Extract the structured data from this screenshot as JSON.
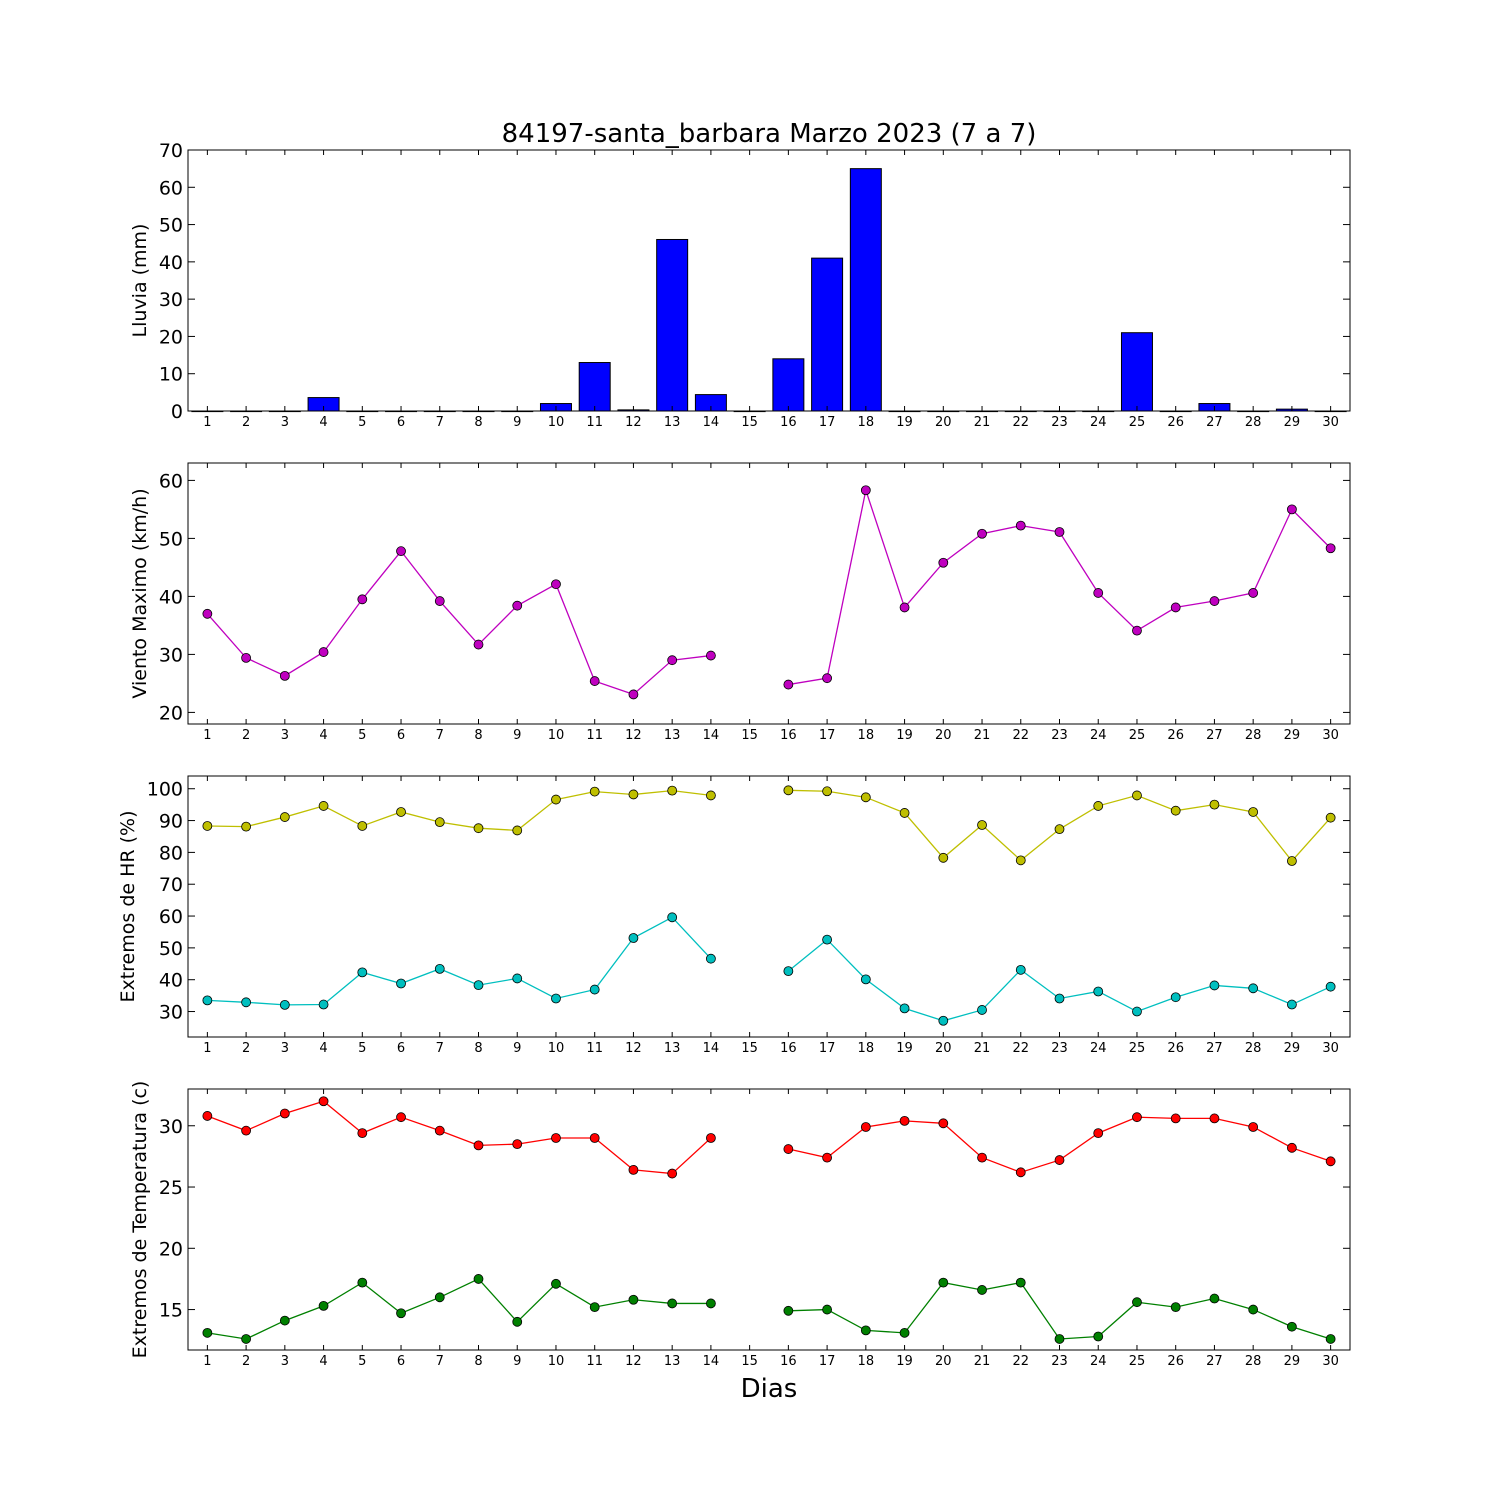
{
  "title": "84197-santa_barbara Marzo 2023  (7 a 7)",
  "xlabel": "Dias",
  "chart_data": [
    {
      "type": "bar",
      "ylabel": "Lluvia (mm)",
      "ylim": [
        0,
        70
      ],
      "yticks": [
        0,
        10,
        20,
        30,
        40,
        50,
        60,
        70
      ],
      "xlim": [
        0.5,
        30.5
      ],
      "xticks": [
        1,
        2,
        3,
        4,
        5,
        6,
        7,
        8,
        9,
        10,
        11,
        12,
        13,
        14,
        15,
        16,
        17,
        18,
        19,
        20,
        21,
        22,
        23,
        24,
        25,
        26,
        27,
        28,
        29,
        30
      ],
      "x": [
        1,
        2,
        3,
        4,
        5,
        6,
        7,
        8,
        9,
        10,
        11,
        12,
        13,
        14,
        15,
        16,
        17,
        18,
        19,
        20,
        21,
        22,
        23,
        24,
        25,
        26,
        27,
        28,
        29,
        30
      ],
      "series": [
        {
          "color": "#0000ff",
          "values": [
            0,
            0,
            0,
            3.6,
            0,
            0,
            0,
            0,
            0,
            2,
            13,
            0.3,
            46,
            4.4,
            0,
            14,
            41,
            65,
            0,
            0,
            0,
            0,
            0,
            0,
            21,
            0,
            2,
            0,
            0.5,
            0
          ]
        }
      ]
    },
    {
      "type": "line",
      "ylabel": "Viento Maximo (km/h)",
      "ylim": [
        18,
        63
      ],
      "yticks": [
        20,
        30,
        40,
        50,
        60
      ],
      "xlim": [
        0.5,
        30.5
      ],
      "xticks": [
        1,
        2,
        3,
        4,
        5,
        6,
        7,
        8,
        9,
        10,
        11,
        12,
        13,
        14,
        15,
        16,
        17,
        18,
        19,
        20,
        21,
        22,
        23,
        24,
        25,
        26,
        27,
        28,
        29,
        30
      ],
      "x": [
        1,
        2,
        3,
        4,
        5,
        6,
        7,
        8,
        9,
        10,
        11,
        12,
        13,
        14,
        15,
        16,
        17,
        18,
        19,
        20,
        21,
        22,
        23,
        24,
        25,
        26,
        27,
        28,
        29,
        30
      ],
      "series": [
        {
          "color": "#bf00bf",
          "values": [
            37,
            29.4,
            26.3,
            30.4,
            39.5,
            47.8,
            39.2,
            31.7,
            38.4,
            42.1,
            25.4,
            23.1,
            29,
            29.8,
            null,
            24.8,
            25.9,
            58.3,
            38.1,
            45.8,
            50.8,
            52.2,
            51.1,
            40.6,
            34.1,
            38.1,
            39.2,
            40.6,
            55,
            48.3
          ]
        }
      ]
    },
    {
      "type": "line",
      "ylabel": "Extremos de HR (%)",
      "ylim": [
        22,
        104
      ],
      "yticks": [
        30,
        40,
        50,
        60,
        70,
        80,
        90,
        100
      ],
      "xlim": [
        0.5,
        30.5
      ],
      "xticks": [
        1,
        2,
        3,
        4,
        5,
        6,
        7,
        8,
        9,
        10,
        11,
        12,
        13,
        14,
        15,
        16,
        17,
        18,
        19,
        20,
        21,
        22,
        23,
        24,
        25,
        26,
        27,
        28,
        29,
        30
      ],
      "x": [
        1,
        2,
        3,
        4,
        5,
        6,
        7,
        8,
        9,
        10,
        11,
        12,
        13,
        14,
        15,
        16,
        17,
        18,
        19,
        20,
        21,
        22,
        23,
        24,
        25,
        26,
        27,
        28,
        29,
        30
      ],
      "series": [
        {
          "color": "#bfbf00",
          "values": [
            88.3,
            88.1,
            91.1,
            94.6,
            88.3,
            92.7,
            89.5,
            87.6,
            86.9,
            96.6,
            99.1,
            98.2,
            99.4,
            97.9,
            null,
            99.5,
            99.2,
            97.3,
            92.4,
            78.3,
            88.6,
            77.5,
            87.3,
            94.6,
            97.9,
            93.1,
            95,
            92.7,
            77.3,
            90.9
          ]
        },
        {
          "color": "#00bfbf",
          "values": [
            33.5,
            32.9,
            32.1,
            32.2,
            42.3,
            38.8,
            43.4,
            38.3,
            40.4,
            34.1,
            36.9,
            53.1,
            59.6,
            46.6,
            null,
            42.7,
            52.6,
            40.1,
            31,
            27.1,
            30.5,
            43.1,
            34.1,
            36.3,
            30,
            34.5,
            38.2,
            37.3,
            32.2,
            37.8
          ]
        }
      ]
    },
    {
      "type": "line",
      "ylabel": "Extremos de Temperatura (c)",
      "ylim": [
        11.7,
        33
      ],
      "yticks": [
        15,
        20,
        25,
        30
      ],
      "xlim": [
        0.5,
        30.5
      ],
      "xticks": [
        1,
        2,
        3,
        4,
        5,
        6,
        7,
        8,
        9,
        10,
        11,
        12,
        13,
        14,
        15,
        16,
        17,
        18,
        19,
        20,
        21,
        22,
        23,
        24,
        25,
        26,
        27,
        28,
        29,
        30
      ],
      "x": [
        1,
        2,
        3,
        4,
        5,
        6,
        7,
        8,
        9,
        10,
        11,
        12,
        13,
        14,
        15,
        16,
        17,
        18,
        19,
        20,
        21,
        22,
        23,
        24,
        25,
        26,
        27,
        28,
        29,
        30
      ],
      "series": [
        {
          "color": "#ff0000",
          "values": [
            30.8,
            29.6,
            31,
            32,
            29.4,
            30.7,
            29.6,
            28.4,
            28.5,
            29,
            29,
            26.4,
            26.1,
            29,
            null,
            28.1,
            27.4,
            29.9,
            30.4,
            30.2,
            27.4,
            26.2,
            27.2,
            29.4,
            30.7,
            30.6,
            30.6,
            29.9,
            28.2,
            27.1
          ]
        },
        {
          "color": "#008000",
          "values": [
            13.1,
            12.6,
            14.1,
            15.3,
            17.2,
            14.7,
            16,
            17.5,
            14,
            17.1,
            15.2,
            15.8,
            15.5,
            15.5,
            null,
            14.9,
            15,
            13.3,
            13.1,
            17.2,
            16.6,
            17.2,
            12.6,
            12.8,
            15.6,
            15.2,
            15.9,
            15,
            13.6,
            12.6
          ]
        }
      ]
    }
  ]
}
